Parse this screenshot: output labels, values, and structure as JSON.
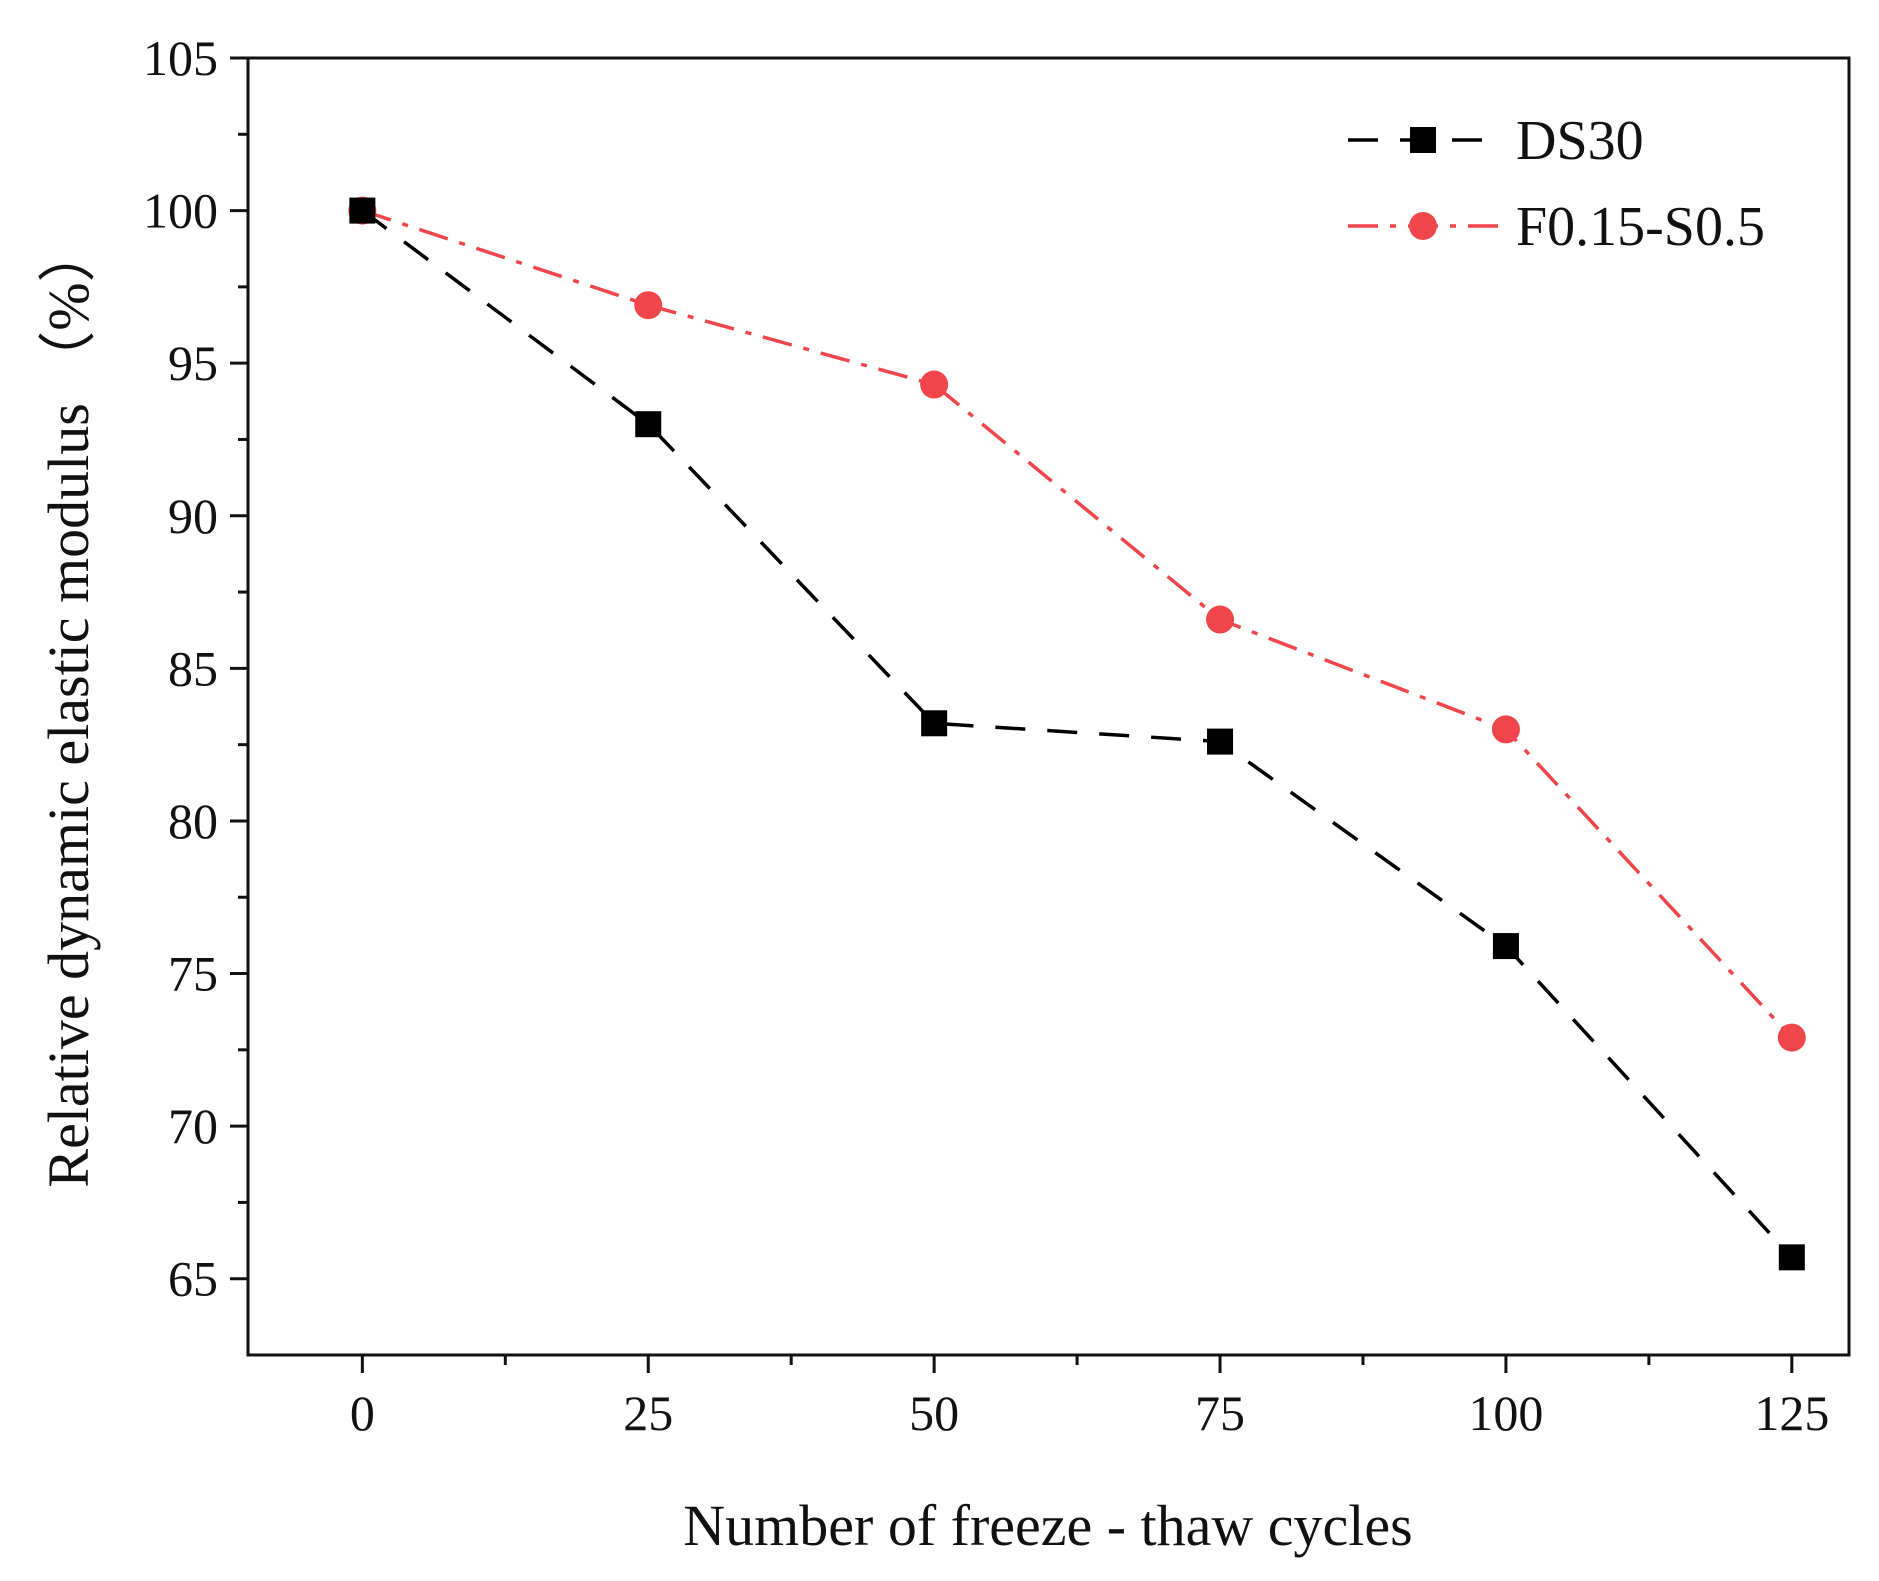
{
  "chart_data": {
    "type": "line",
    "title": "",
    "xlabel": "Number of freeze - thaw cycles",
    "ylabel": "Relative dynamic elastic modulus （%）",
    "x": [
      0,
      25,
      50,
      75,
      100,
      125
    ],
    "xlim": [
      -10,
      130
    ],
    "ylim": [
      62.5,
      105
    ],
    "xticks": [
      0,
      25,
      50,
      75,
      100,
      125
    ],
    "yticks": [
      65,
      70,
      75,
      80,
      85,
      90,
      95,
      100,
      105
    ],
    "grid": false,
    "legend_position": "top-right",
    "series": [
      {
        "name": "DS30",
        "values": [
          100,
          93.0,
          83.2,
          82.6,
          75.9,
          65.7
        ],
        "color": "#000000",
        "marker": "square",
        "line_style": "dash"
      },
      {
        "name": "F0.15-S0.5",
        "values": [
          100,
          96.9,
          94.3,
          86.6,
          83.0,
          72.9
        ],
        "color": "#f0454a",
        "marker": "circle",
        "line_style": "dash-dot"
      }
    ]
  }
}
